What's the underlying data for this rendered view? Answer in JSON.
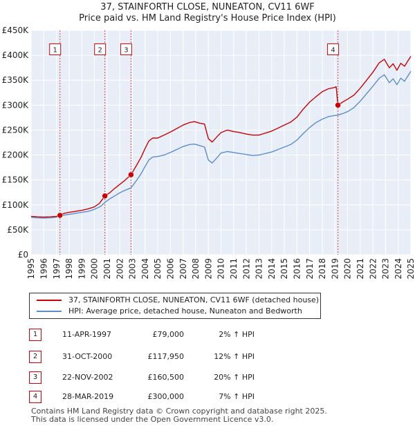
{
  "chart_data": {
    "type": "line",
    "title": "37, STAINFORTH CLOSE, NUNEATON, CV11 6WF",
    "subtitle": "Price paid vs. HM Land Registry's House Price Index (HPI)",
    "xlim": [
      1995,
      2025
    ],
    "ylim": [
      0,
      450000
    ],
    "y_ticks": [
      {
        "value": 0,
        "label": "£0"
      },
      {
        "value": 50000,
        "label": "£50K"
      },
      {
        "value": 100000,
        "label": "£100K"
      },
      {
        "value": 150000,
        "label": "£150K"
      },
      {
        "value": 200000,
        "label": "£200K"
      },
      {
        "value": 250000,
        "label": "£250K"
      },
      {
        "value": 300000,
        "label": "£300K"
      },
      {
        "value": 350000,
        "label": "£350K"
      },
      {
        "value": 400000,
        "label": "£400K"
      },
      {
        "value": 450000,
        "label": "£450K"
      }
    ],
    "x_ticks": [
      "1995",
      "1996",
      "1997",
      "1998",
      "1999",
      "2000",
      "2001",
      "2002",
      "2003",
      "2004",
      "2005",
      "2006",
      "2007",
      "2008",
      "2009",
      "2010",
      "2011",
      "2012",
      "2013",
      "2014",
      "2015",
      "2016",
      "2017",
      "2018",
      "2019",
      "2020",
      "2021",
      "2022",
      "2023",
      "2024",
      "2025"
    ],
    "grid": true,
    "legend": "below",
    "series": [
      {
        "name": "37, STAINFORTH CLOSE, NUNEATON, CV11 6WF (detached house)",
        "color": "#cc0000",
        "points": [
          [
            1995.0,
            77000
          ],
          [
            1995.5,
            76000
          ],
          [
            1996.0,
            75500
          ],
          [
            1996.5,
            76000
          ],
          [
            1997.0,
            77000
          ],
          [
            1997.28,
            79000
          ],
          [
            1997.6,
            83000
          ],
          [
            1998.0,
            85000
          ],
          [
            1998.5,
            87000
          ],
          [
            1999.0,
            89000
          ],
          [
            1999.5,
            92000
          ],
          [
            2000.0,
            96000
          ],
          [
            2000.4,
            103000
          ],
          [
            2000.83,
            117950
          ],
          [
            2001.2,
            124000
          ],
          [
            2001.6,
            133000
          ],
          [
            2002.0,
            141000
          ],
          [
            2002.4,
            149000
          ],
          [
            2002.89,
            160500
          ],
          [
            2003.3,
            178000
          ],
          [
            2003.7,
            196000
          ],
          [
            2004.0,
            213000
          ],
          [
            2004.3,
            228000
          ],
          [
            2004.6,
            234000
          ],
          [
            2005.0,
            234000
          ],
          [
            2005.5,
            240000
          ],
          [
            2006.0,
            246000
          ],
          [
            2006.5,
            253000
          ],
          [
            2007.0,
            260000
          ],
          [
            2007.5,
            265000
          ],
          [
            2007.9,
            267000
          ],
          [
            2008.3,
            264000
          ],
          [
            2008.7,
            262000
          ],
          [
            2009.0,
            233000
          ],
          [
            2009.3,
            226000
          ],
          [
            2009.7,
            237000
          ],
          [
            2010.0,
            245000
          ],
          [
            2010.5,
            250000
          ],
          [
            2011.0,
            247000
          ],
          [
            2011.5,
            245000
          ],
          [
            2012.0,
            242000
          ],
          [
            2012.5,
            240000
          ],
          [
            2013.0,
            240000
          ],
          [
            2013.5,
            244000
          ],
          [
            2014.0,
            248000
          ],
          [
            2014.5,
            254000
          ],
          [
            2015.0,
            260000
          ],
          [
            2015.5,
            266000
          ],
          [
            2016.0,
            276000
          ],
          [
            2016.5,
            292000
          ],
          [
            2017.0,
            306000
          ],
          [
            2017.5,
            317000
          ],
          [
            2018.0,
            327000
          ],
          [
            2018.5,
            333000
          ],
          [
            2018.9,
            335000
          ],
          [
            2019.1,
            337000
          ],
          [
            2019.24,
            300000
          ],
          [
            2019.6,
            306000
          ],
          [
            2020.0,
            312000
          ],
          [
            2020.5,
            320000
          ],
          [
            2021.0,
            334000
          ],
          [
            2021.5,
            350000
          ],
          [
            2022.0,
            366000
          ],
          [
            2022.5,
            385000
          ],
          [
            2022.9,
            392000
          ],
          [
            2023.3,
            375000
          ],
          [
            2023.6,
            383000
          ],
          [
            2023.9,
            370000
          ],
          [
            2024.2,
            384000
          ],
          [
            2024.5,
            378000
          ],
          [
            2024.8,
            390000
          ],
          [
            2025.0,
            398000
          ]
        ]
      },
      {
        "name": "HPI: Average price, detached house, Nuneaton and Bedworth",
        "color": "#5b8ccc",
        "points": [
          [
            1995.0,
            75000
          ],
          [
            1995.5,
            74000
          ],
          [
            1996.0,
            73500
          ],
          [
            1996.5,
            74000
          ],
          [
            1997.0,
            75500
          ],
          [
            1997.28,
            77500
          ],
          [
            1997.6,
            79500
          ],
          [
            1998.0,
            81000
          ],
          [
            1998.5,
            83000
          ],
          [
            1999.0,
            85000
          ],
          [
            1999.5,
            87000
          ],
          [
            2000.0,
            91000
          ],
          [
            2000.5,
            97000
          ],
          [
            2000.83,
            105000
          ],
          [
            2001.2,
            112000
          ],
          [
            2001.6,
            118000
          ],
          [
            2002.0,
            124000
          ],
          [
            2002.4,
            129000
          ],
          [
            2002.89,
            134000
          ],
          [
            2003.3,
            148000
          ],
          [
            2003.7,
            163000
          ],
          [
            2004.0,
            177000
          ],
          [
            2004.3,
            190000
          ],
          [
            2004.6,
            196000
          ],
          [
            2005.0,
            197000
          ],
          [
            2005.5,
            200000
          ],
          [
            2006.0,
            205000
          ],
          [
            2006.5,
            211000
          ],
          [
            2007.0,
            217000
          ],
          [
            2007.5,
            221000
          ],
          [
            2007.9,
            222000
          ],
          [
            2008.3,
            219000
          ],
          [
            2008.7,
            216000
          ],
          [
            2009.0,
            190000
          ],
          [
            2009.3,
            184000
          ],
          [
            2009.7,
            195000
          ],
          [
            2010.0,
            204000
          ],
          [
            2010.5,
            207000
          ],
          [
            2011.0,
            205000
          ],
          [
            2011.5,
            203000
          ],
          [
            2012.0,
            201000
          ],
          [
            2012.5,
            199000
          ],
          [
            2013.0,
            200000
          ],
          [
            2013.5,
            203000
          ],
          [
            2014.0,
            206000
          ],
          [
            2014.5,
            211000
          ],
          [
            2015.0,
            216000
          ],
          [
            2015.5,
            221000
          ],
          [
            2016.0,
            230000
          ],
          [
            2016.5,
            243000
          ],
          [
            2017.0,
            255000
          ],
          [
            2017.5,
            265000
          ],
          [
            2018.0,
            272000
          ],
          [
            2018.5,
            277000
          ],
          [
            2018.9,
            279000
          ],
          [
            2019.24,
            280000
          ],
          [
            2019.6,
            283000
          ],
          [
            2020.0,
            287000
          ],
          [
            2020.5,
            295000
          ],
          [
            2021.0,
            308000
          ],
          [
            2021.5,
            323000
          ],
          [
            2022.0,
            338000
          ],
          [
            2022.5,
            354000
          ],
          [
            2022.9,
            361000
          ],
          [
            2023.3,
            345000
          ],
          [
            2023.6,
            353000
          ],
          [
            2023.9,
            341000
          ],
          [
            2024.2,
            354000
          ],
          [
            2024.5,
            348000
          ],
          [
            2024.8,
            360000
          ],
          [
            2025.0,
            368000
          ]
        ]
      }
    ],
    "sales": [
      {
        "id": "1",
        "x": 1997.28,
        "price": 79000,
        "label_y": 412000
      },
      {
        "id": "2",
        "x": 2000.83,
        "price": 117950,
        "label_y": 412000
      },
      {
        "id": "3",
        "x": 2002.89,
        "price": 160500,
        "label_y": 412000
      },
      {
        "id": "4",
        "x": 2019.24,
        "price": 300000,
        "label_y": 412000
      }
    ]
  },
  "sales_table": [
    {
      "num": "1",
      "date": "11-APR-1997",
      "price": "£79,000",
      "delta": "2% ↑ HPI"
    },
    {
      "num": "2",
      "date": "31-OCT-2000",
      "price": "£117,950",
      "delta": "12% ↑ HPI"
    },
    {
      "num": "3",
      "date": "22-NOV-2002",
      "price": "£160,500",
      "delta": "20% ↑ HPI"
    },
    {
      "num": "4",
      "date": "28-MAR-2019",
      "price": "£300,000",
      "delta": "7% ↑ HPI"
    }
  ],
  "legend": {
    "property_label": "37, STAINFORTH CLOSE, NUNEATON, CV11 6WF (detached house)",
    "hpi_label": "HPI: Average price, detached house, Nuneaton and Bedworth",
    "property_color": "#cc0000",
    "hpi_color": "#5b8ccc"
  },
  "footer": {
    "line1": "Contains HM Land Registry data © Crown copyright and database right 2025.",
    "line2": "This data is licensed under the Open Government Licence v3.0."
  }
}
